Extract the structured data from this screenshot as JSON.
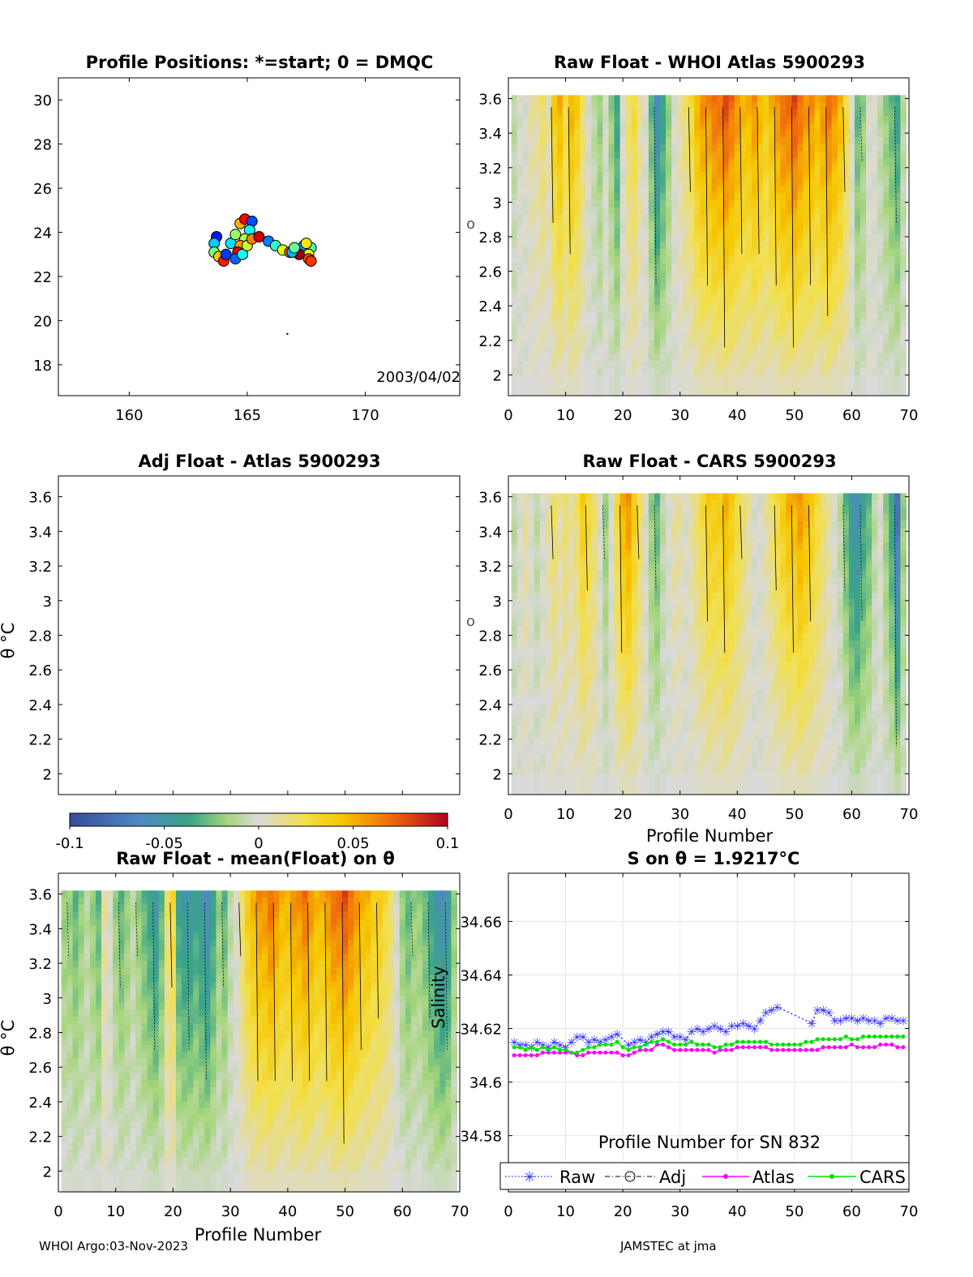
{
  "chart_data": [
    {
      "id": "positions",
      "type": "scatter",
      "title": "Profile Positions: *=start; 0 = DMQC",
      "xlim": [
        157,
        174
      ],
      "ylim": [
        16.6,
        31
      ],
      "xticks": [
        "160",
        "165",
        "170"
      ],
      "xtick_values": [
        160,
        165,
        170
      ],
      "yticks": [
        "18",
        "20",
        "22",
        "24",
        "26",
        "28",
        "30"
      ],
      "ytick_values": [
        18,
        20,
        22,
        24,
        26,
        28,
        30
      ],
      "date_label": "2003/04/02",
      "track": [
        [
          163.7,
          23.8
        ],
        [
          163.6,
          23.5
        ],
        [
          163.6,
          23.1
        ],
        [
          163.8,
          22.9
        ],
        [
          164.0,
          22.7
        ],
        [
          164.1,
          23.0
        ],
        [
          164.3,
          23.5
        ],
        [
          164.5,
          23.9
        ],
        [
          164.7,
          24.4
        ],
        [
          164.9,
          24.6
        ],
        [
          165.2,
          24.5
        ],
        [
          165.1,
          24.1
        ],
        [
          164.9,
          23.7
        ],
        [
          164.7,
          23.4
        ],
        [
          164.6,
          23.1
        ],
        [
          164.5,
          22.8
        ],
        [
          164.8,
          23.0
        ],
        [
          165.0,
          23.4
        ],
        [
          165.2,
          23.7
        ],
        [
          165.5,
          23.8
        ],
        [
          165.9,
          23.6
        ],
        [
          166.2,
          23.4
        ],
        [
          166.5,
          23.2
        ],
        [
          166.8,
          23.1
        ],
        [
          167.1,
          23.2
        ],
        [
          167.4,
          23.4
        ],
        [
          167.7,
          23.3
        ],
        [
          167.6,
          23.0
        ],
        [
          167.6,
          22.8
        ],
        [
          167.2,
          23.0
        ],
        [
          166.9,
          23.1
        ],
        [
          167.0,
          23.3
        ],
        [
          167.5,
          23.5
        ],
        [
          167.7,
          22.7
        ]
      ],
      "stray_point": [
        166.7,
        19.4
      ]
    },
    {
      "id": "raw-whoi",
      "type": "heatmap",
      "title": "Raw Float - WHOI Atlas  5900293",
      "xlim": [
        0,
        70
      ],
      "ylim": [
        1.88,
        3.72
      ],
      "xticks": [
        "0",
        "10",
        "20",
        "30",
        "40",
        "50",
        "60",
        "70"
      ],
      "xtick_values": [
        0,
        10,
        20,
        30,
        40,
        50,
        60,
        70
      ],
      "yticks": [
        "2",
        "2.2",
        "2.4",
        "2.6",
        "2.8",
        "3",
        "3.2",
        "3.4",
        "3.6"
      ],
      "ytick_values": [
        2,
        2.2,
        2.4,
        2.6,
        2.8,
        3,
        3.2,
        3.4,
        3.6
      ],
      "ylabel_fragment": "o",
      "profile_values": [
        -0.01,
        0.0,
        0.0,
        0.01,
        0.01,
        0.02,
        0.01,
        0.04,
        0.05,
        0.03,
        0.05,
        0.04,
        0.02,
        0.0,
        -0.01,
        -0.02,
        0.0,
        -0.02,
        -0.04,
        0.0,
        0.02,
        0.03,
        0.01,
        0.0,
        -0.03,
        -0.06,
        -0.04,
        -0.02,
        0.0,
        0.01,
        0.02,
        0.03,
        0.05,
        0.06,
        0.06,
        0.07,
        0.07,
        0.08,
        0.07,
        0.06,
        0.05,
        0.05,
        0.06,
        0.05,
        0.04,
        0.05,
        0.06,
        0.07,
        0.07,
        0.08,
        0.07,
        0.06,
        0.06,
        0.05,
        0.06,
        0.07,
        0.06,
        0.05,
        0.03,
        0.0,
        -0.03,
        -0.02,
        0.0,
        0.0,
        -0.01,
        -0.02,
        -0.03,
        -0.04,
        -0.01
      ]
    },
    {
      "id": "adj-atlas",
      "type": "heatmap",
      "title": "Adj Float - Atlas  5900293",
      "xlim": [
        0,
        70
      ],
      "ylim": [
        1.88,
        3.72
      ],
      "yticks": [
        "2",
        "2.2",
        "2.4",
        "2.6",
        "2.8",
        "3",
        "3.2",
        "3.4",
        "3.6"
      ],
      "ytick_values": [
        2,
        2.2,
        2.4,
        2.6,
        2.8,
        3,
        3.2,
        3.4,
        3.6
      ],
      "ylabel": "θ °C",
      "empty": true
    },
    {
      "id": "raw-cars",
      "type": "heatmap",
      "title": "Raw Float - CARS  5900293",
      "xlim": [
        0,
        70
      ],
      "ylim": [
        1.88,
        3.72
      ],
      "xticks": [
        "0",
        "10",
        "20",
        "30",
        "40",
        "50",
        "60",
        "70"
      ],
      "xtick_values": [
        0,
        10,
        20,
        30,
        40,
        50,
        60,
        70
      ],
      "yticks": [
        "2",
        "2.2",
        "2.4",
        "2.6",
        "2.8",
        "3",
        "3.2",
        "3.4",
        "3.6"
      ],
      "ytick_values": [
        2,
        2.2,
        2.4,
        2.6,
        2.8,
        3,
        3.2,
        3.4,
        3.6
      ],
      "xlabel": "Profile Number",
      "ylabel_fragment": "o",
      "profile_values": [
        -0.01,
        0.0,
        0.01,
        0.0,
        -0.01,
        0.0,
        0.01,
        0.02,
        0.01,
        0.02,
        0.01,
        0.02,
        0.04,
        0.03,
        0.02,
        0.0,
        -0.02,
        0.0,
        0.03,
        0.05,
        0.06,
        0.04,
        0.02,
        0.0,
        -0.02,
        -0.03,
        -0.01,
        0.0,
        0.01,
        0.01,
        0.0,
        0.01,
        0.02,
        0.03,
        0.04,
        0.04,
        0.04,
        0.05,
        0.04,
        0.03,
        0.02,
        0.01,
        0.0,
        0.0,
        0.01,
        0.02,
        0.03,
        0.04,
        0.05,
        0.05,
        0.06,
        0.05,
        0.04,
        0.03,
        0.02,
        0.01,
        0.0,
        -0.01,
        -0.03,
        -0.05,
        -0.06,
        -0.04,
        -0.03,
        -0.01,
        0.0,
        -0.02,
        -0.04,
        -0.08,
        -0.02
      ]
    },
    {
      "id": "colorbar",
      "type": "colorbar",
      "range": [
        -0.1,
        0.1
      ],
      "ticks": [
        "-0.1",
        "-0.05",
        "0",
        "0.05",
        "0.1"
      ],
      "tick_values": [
        -0.1,
        -0.05,
        0,
        0.05,
        0.1
      ]
    },
    {
      "id": "raw-mean",
      "type": "heatmap",
      "title": "Raw Float - mean(Float) on θ",
      "xlim": [
        0,
        70
      ],
      "ylim": [
        1.88,
        3.72
      ],
      "xticks": [
        "0",
        "10",
        "20",
        "30",
        "40",
        "50",
        "60",
        "70"
      ],
      "xtick_values": [
        0,
        10,
        20,
        30,
        40,
        50,
        60,
        70
      ],
      "yticks": [
        "2",
        "2.2",
        "2.4",
        "2.6",
        "2.8",
        "3",
        "3.2",
        "3.4",
        "3.6"
      ],
      "ytick_values": [
        2,
        2.2,
        2.4,
        2.6,
        2.8,
        3,
        3.2,
        3.4,
        3.6
      ],
      "xlabel": "Profile Number",
      "ylabel": "θ °C",
      "profile_values": [
        -0.02,
        -0.02,
        -0.03,
        -0.02,
        -0.01,
        -0.02,
        -0.03,
        0.01,
        0.0,
        -0.02,
        -0.03,
        -0.02,
        -0.01,
        -0.02,
        -0.03,
        -0.04,
        -0.05,
        -0.03,
        0.02,
        0.03,
        -0.04,
        -0.05,
        -0.05,
        -0.04,
        -0.05,
        -0.06,
        -0.04,
        -0.02,
        -0.03,
        -0.01,
        0.0,
        0.02,
        0.04,
        0.05,
        0.06,
        0.06,
        0.07,
        0.06,
        0.05,
        0.05,
        0.06,
        0.06,
        0.07,
        0.06,
        0.05,
        0.05,
        0.06,
        0.07,
        0.07,
        0.08,
        0.07,
        0.06,
        0.05,
        0.05,
        0.04,
        0.04,
        0.03,
        0.02,
        0.0,
        -0.02,
        -0.03,
        -0.02,
        -0.02,
        -0.03,
        -0.04,
        -0.05,
        -0.06,
        -0.05,
        -0.02
      ]
    },
    {
      "id": "salinity",
      "type": "line",
      "title": "S on θ = 1.9217°C",
      "xlim": [
        0,
        70
      ],
      "ylim": [
        34.559,
        34.678
      ],
      "xticks": [
        "0",
        "10",
        "20",
        "30",
        "40",
        "50",
        "60",
        "70"
      ],
      "xtick_values": [
        0,
        10,
        20,
        30,
        40,
        50,
        60,
        70
      ],
      "yticks": [
        "34.58",
        "34.6",
        "34.62",
        "34.64",
        "34.66"
      ],
      "ytick_values": [
        34.58,
        34.6,
        34.62,
        34.64,
        34.66
      ],
      "xlabel": "Profile Number for SN 832",
      "ylabel": "Salinity",
      "legend": [
        "Raw",
        "Adj",
        "Atlas",
        "CARS"
      ],
      "series": [
        {
          "name": "Raw",
          "color": "#3030ff",
          "x": [
            1,
            2,
            3,
            4,
            5,
            6,
            7,
            8,
            9,
            10,
            11,
            12,
            13,
            14,
            15,
            16,
            17,
            18,
            19,
            21,
            22,
            23,
            24,
            25,
            26,
            27,
            28,
            29,
            30,
            31,
            32,
            33,
            34,
            35,
            36,
            37,
            38,
            39,
            40,
            41,
            42,
            43,
            44,
            45,
            46,
            47,
            53,
            54,
            55,
            56,
            57,
            58,
            59,
            60,
            61,
            62,
            63,
            64,
            65,
            66,
            67,
            68,
            69
          ],
          "y": [
            34.615,
            34.614,
            34.614,
            34.613,
            34.615,
            34.614,
            34.613,
            34.615,
            34.614,
            34.613,
            34.615,
            34.617,
            34.617,
            34.615,
            34.616,
            34.615,
            34.616,
            34.617,
            34.618,
            34.614,
            34.615,
            34.616,
            34.615,
            34.617,
            34.618,
            34.619,
            34.619,
            34.617,
            34.617,
            34.616,
            34.619,
            34.62,
            34.619,
            34.62,
            34.621,
            34.62,
            34.619,
            34.621,
            34.621,
            34.622,
            34.621,
            34.62,
            34.623,
            34.626,
            34.627,
            34.628,
            34.622,
            34.627,
            34.627,
            34.626,
            34.623,
            34.623,
            34.624,
            34.624,
            34.623,
            34.624,
            34.623,
            34.623,
            34.622,
            34.624,
            34.624,
            34.623,
            34.623
          ]
        },
        {
          "name": "Atlas",
          "color": "#ff00ff",
          "x": [
            1,
            2,
            3,
            4,
            5,
            6,
            7,
            8,
            9,
            10,
            11,
            12,
            13,
            14,
            15,
            16,
            17,
            18,
            19,
            20,
            21,
            22,
            23,
            24,
            25,
            26,
            27,
            28,
            29,
            30,
            31,
            32,
            33,
            34,
            35,
            36,
            37,
            38,
            39,
            40,
            41,
            42,
            43,
            44,
            45,
            46,
            47,
            48,
            49,
            50,
            51,
            52,
            53,
            54,
            55,
            56,
            57,
            58,
            59,
            60,
            61,
            62,
            63,
            64,
            65,
            66,
            67,
            68,
            69
          ],
          "y": [
            34.61,
            34.61,
            34.61,
            34.61,
            34.61,
            34.611,
            34.611,
            34.611,
            34.611,
            34.611,
            34.611,
            34.61,
            34.61,
            34.611,
            34.611,
            34.611,
            34.611,
            34.611,
            34.611,
            34.61,
            34.61,
            34.611,
            34.612,
            34.612,
            34.612,
            34.614,
            34.614,
            34.613,
            34.612,
            34.612,
            34.612,
            34.612,
            34.612,
            34.612,
            34.612,
            34.611,
            34.612,
            34.612,
            34.612,
            34.613,
            34.613,
            34.613,
            34.613,
            34.613,
            34.613,
            34.612,
            34.612,
            34.612,
            34.612,
            34.612,
            34.612,
            34.612,
            34.612,
            34.612,
            34.613,
            34.613,
            34.613,
            34.613,
            34.613,
            34.614,
            34.613,
            34.613,
            34.613,
            34.613,
            34.614,
            34.614,
            34.614,
            34.613,
            34.613
          ]
        },
        {
          "name": "CARS",
          "color": "#00e000",
          "x": [
            1,
            2,
            3,
            4,
            5,
            6,
            7,
            8,
            9,
            10,
            11,
            12,
            13,
            14,
            15,
            16,
            17,
            18,
            19,
            20,
            21,
            22,
            23,
            24,
            25,
            26,
            27,
            28,
            29,
            30,
            31,
            32,
            33,
            34,
            35,
            36,
            37,
            38,
            39,
            40,
            41,
            42,
            43,
            44,
            45,
            46,
            47,
            48,
            49,
            50,
            51,
            52,
            53,
            54,
            55,
            56,
            57,
            58,
            59,
            60,
            61,
            62,
            63,
            64,
            65,
            66,
            67,
            68,
            69
          ],
          "y": [
            34.613,
            34.613,
            34.612,
            34.613,
            34.612,
            34.613,
            34.612,
            34.613,
            34.612,
            34.612,
            34.611,
            34.611,
            34.612,
            34.613,
            34.613,
            34.614,
            34.614,
            34.614,
            34.615,
            34.613,
            34.612,
            34.613,
            34.613,
            34.614,
            34.615,
            34.615,
            34.616,
            34.615,
            34.614,
            34.614,
            34.614,
            34.615,
            34.614,
            34.614,
            34.614,
            34.613,
            34.613,
            34.614,
            34.614,
            34.615,
            34.615,
            34.615,
            34.615,
            34.615,
            34.615,
            34.614,
            34.614,
            34.614,
            34.614,
            34.614,
            34.614,
            34.615,
            34.615,
            34.616,
            34.616,
            34.616,
            34.616,
            34.616,
            34.617,
            34.616,
            34.616,
            34.617,
            34.617,
            34.617,
            34.617,
            34.617,
            34.617,
            34.617,
            34.617
          ]
        }
      ]
    }
  ],
  "footer": {
    "left": "WHOI Argo:03-Nov-2023",
    "right": "JAMSTEC at jma"
  }
}
